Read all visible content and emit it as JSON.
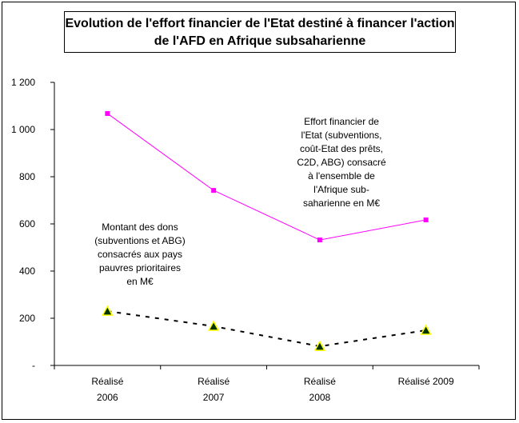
{
  "chart_data": {
    "type": "line",
    "title": "Evolution de l'effort financier de l'Etat destiné à financer l'action de l'AFD en Afrique subsaharienne",
    "title_lines": [
      "Evolution de l'effort financier de l'Etat destiné à financer l'action",
      "de l'AFD en Afrique subsaharienne"
    ],
    "categories": [
      [
        "Réalisé",
        "2006"
      ],
      [
        "Réalisé",
        "2007"
      ],
      [
        "Réalisé",
        "2008"
      ],
      [
        "Réalisé 2009"
      ]
    ],
    "ylim": [
      0,
      1200
    ],
    "yticks": [
      0,
      200,
      400,
      600,
      800,
      1000,
      1200
    ],
    "ytick_labels": [
      "-",
      "200",
      "400",
      "600",
      "800",
      "1 000",
      "1 200"
    ],
    "grid": false,
    "series": [
      {
        "values": [
          1068,
          742,
          532,
          617
        ],
        "color": "#ff00ff",
        "marker": "square",
        "style": "solid",
        "annotation": [
          "Effort financier de",
          "l'Etat (subventions,",
          "coût-Etat des prêts,",
          "C2D, ABG) consacré",
          "à l'ensemble de",
          "l'Afrique sub-",
          "saharienne en M€"
        ]
      },
      {
        "values": [
          230,
          166,
          81,
          149
        ],
        "color": "#000000",
        "marker": "triangle",
        "marker_fill": "#003300",
        "marker_edge": "#ffff00",
        "style": "dashed",
        "annotation": [
          "Montant des dons",
          "(subventions et ABG)",
          "consacrés aux pays",
          "pauvres prioritaires",
          "en M€"
        ]
      }
    ]
  }
}
